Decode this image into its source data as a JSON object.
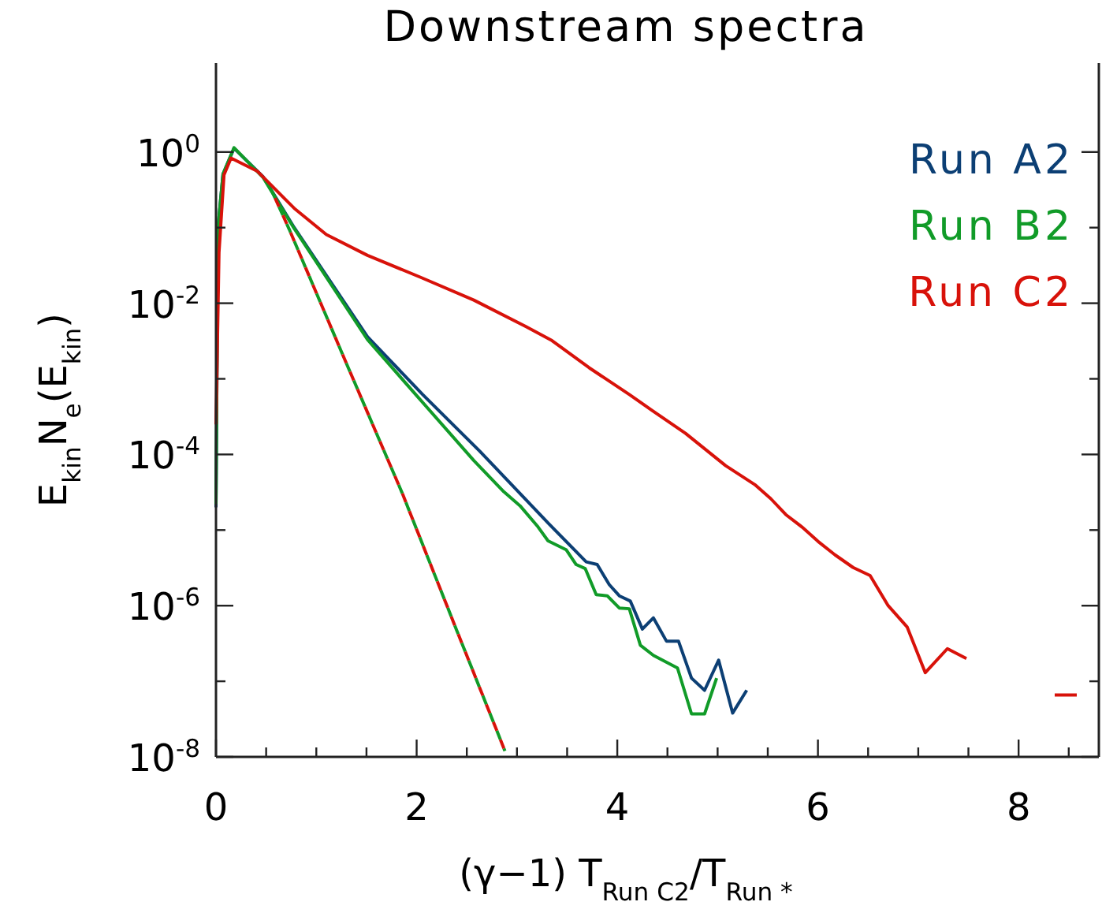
{
  "chart_data": {
    "type": "line",
    "title": "Downstream spectra",
    "xlabel": "(γ−1) T$_{Run C2}$/T$_{Run *}$",
    "ylabel": "E$_{kin}$N$_{e}$(E$_{kin}$)",
    "log": "y",
    "legend": "top right",
    "xlim": [
      0,
      8.8
    ],
    "ylim": [
      1e-08,
      15
    ],
    "xticks": [
      0,
      {
        "value": 0.5,
        "label": null
      },
      {
        "value": 1,
        "label": null
      },
      {
        "value": 1.5,
        "label": null
      },
      2,
      {
        "value": 2.5,
        "label": null
      },
      {
        "value": 3,
        "label": null
      },
      {
        "value": 3.5,
        "label": null
      },
      4,
      {
        "value": 4.5,
        "label": null
      },
      {
        "value": 5,
        "label": null
      },
      {
        "value": 5.5,
        "label": null
      },
      6,
      {
        "value": 6.5,
        "label": null
      },
      {
        "value": 7,
        "label": null
      },
      {
        "value": 7.5,
        "label": null
      },
      8,
      {
        "value": 8.5,
        "label": null
      }
    ],
    "yticks": [
      {
        "value": 1,
        "label": "10$^{0}$"
      },
      {
        "value": 0.1,
        "label": null
      },
      {
        "value": 0.01,
        "label": "10$^{-2}$"
      },
      {
        "value": 0.001,
        "label": null
      },
      {
        "value": 0.0001,
        "label": "10$^{-4}$"
      },
      {
        "value": 1e-05,
        "label": null
      },
      {
        "value": 1e-06,
        "label": "10$^{-6}$"
      },
      {
        "value": 1e-07,
        "label": null
      },
      {
        "value": 1e-08,
        "label": "10$^{-8}$"
      }
    ],
    "series": [
      {
        "name": "Run A2",
        "color": "#0c3f74",
        "line_style": "solid",
        "x": [
          0,
          0.02,
          0.07,
          0.18,
          0.47,
          0.78,
          1.51,
          2.06,
          2.63,
          3.32,
          3.69,
          3.8,
          3.92,
          4.02,
          4.13,
          4.25,
          4.36,
          4.49,
          4.61,
          4.74,
          4.87,
          5.01,
          5.15,
          5.29
        ],
        "values": [
          2e-05,
          0.1,
          0.51,
          1.12,
          0.47,
          0.1,
          0.0036,
          0.00062,
          0.00011,
          1.2e-05,
          3.8e-06,
          3.5e-06,
          1.9e-06,
          1.35e-06,
          1.15e-06,
          4.9e-07,
          6.9e-07,
          3.4e-07,
          3.4e-07,
          1.1e-07,
          7.6e-08,
          1.9e-07,
          3.8e-08,
          7.6e-08
        ]
      },
      {
        "name": "Run B2",
        "color": "#119b28",
        "line_style": "solid",
        "x": [
          0,
          0.02,
          0.07,
          0.18,
          0.47,
          0.78,
          1.51,
          2.02,
          2.57,
          2.87,
          3.03,
          3.21,
          3.31,
          3.49,
          3.59,
          3.68,
          3.79,
          3.9,
          4.02,
          4.12,
          4.23,
          4.36,
          4.6,
          4.74,
          4.87,
          4.99
        ],
        "values": [
          2.2e-05,
          0.1,
          0.51,
          1.14,
          0.46,
          0.097,
          0.0033,
          0.00056,
          8.3e-05,
          3.2e-05,
          2.1e-05,
          1.1e-05,
          7.2e-06,
          5.5e-06,
          3.5e-06,
          3.1e-06,
          1.4e-06,
          1.35e-06,
          9.3e-07,
          9.1e-07,
          3e-07,
          2.2e-07,
          1.5e-07,
          3.7e-08,
          3.7e-08,
          1.1e-07
        ]
      },
      {
        "name": "Run C2",
        "color": "#d8120a",
        "line_style": "solid",
        "x": [
          0,
          0.03,
          0.08,
          0.15,
          0.41,
          0.78,
          1.1,
          1.51,
          2.04,
          2.57,
          3.09,
          3.35,
          3.72,
          4.12,
          4.35,
          4.68,
          5.08,
          5.37,
          5.53,
          5.68,
          5.84,
          6.0,
          6.17,
          6.35,
          6.52,
          6.7,
          6.89,
          7.07,
          7.29,
          7.48,
          7.9,
          8.36,
          8.58
        ],
        "values": [
          0.00025,
          0.047,
          0.5,
          0.83,
          0.56,
          0.18,
          0.081,
          0.043,
          0.022,
          0.011,
          0.0049,
          0.0032,
          0.0014,
          0.00062,
          0.00038,
          0.00019,
          7.1e-05,
          4e-05,
          2.6e-05,
          1.6e-05,
          1.1e-05,
          7.1e-06,
          4.7e-06,
          3.2e-06,
          2.5e-06,
          1e-06,
          5.2e-07,
          1.3e-07,
          2.7e-07,
          2e-07,
          null,
          6.6e-08,
          6.6e-08
        ]
      },
      {
        "color": "#119b28",
        "line_style": "dashed",
        "x": [
          0.55,
          0.73,
          1.3,
          1.86,
          2.4,
          2.88
        ],
        "values": [
          0.32,
          0.095,
          0.0016,
          3e-05,
          4.7e-07,
          1.2e-08
        ]
      },
      {
        "color": "#d8120a",
        "line_style": "dotted",
        "x": [
          0.55,
          0.73,
          1.3,
          1.86,
          2.4,
          2.88
        ],
        "values": [
          0.32,
          0.095,
          0.0016,
          3e-05,
          4.7e-07,
          1.2e-08
        ]
      }
    ]
  }
}
